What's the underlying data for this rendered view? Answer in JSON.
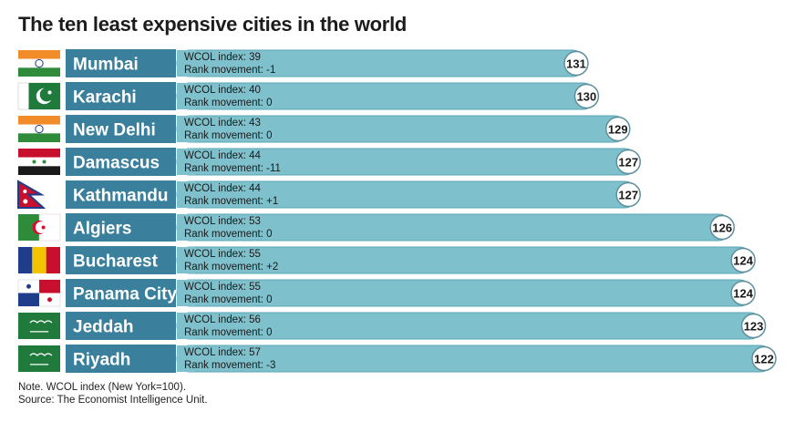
{
  "title": "The ten least expensive cities in the world",
  "note": "Note. WCOL index (New York=100).",
  "source": "Source: The Economist Intelligence Unit.",
  "colors": {
    "name_box": "#3a7f9c",
    "bar": "#7ec0cc",
    "bar_edge": "#5aa6b6",
    "rank_circle": "#ffffff"
  },
  "chart_data": {
    "type": "bar",
    "orientation": "horizontal",
    "categories": [
      "Mumbai",
      "Karachi",
      "New Delhi",
      "Damascus",
      "Kathmandu",
      "Algiers",
      "Bucharest",
      "Panama City",
      "Jeddah",
      "Riyadh"
    ],
    "flags": [
      "india-flag",
      "pakistan-flag",
      "india-flag",
      "syria-flag",
      "nepal-flag",
      "algeria-flag",
      "romania-flag",
      "panama-flag",
      "saudi-arabia-flag",
      "saudi-arabia-flag"
    ],
    "series": [
      {
        "name": "WCOL index",
        "values": [
          39,
          40,
          43,
          44,
          44,
          53,
          55,
          55,
          56,
          57
        ]
      }
    ],
    "rank": [
      131,
      130,
      129,
      127,
      127,
      126,
      124,
      124,
      123,
      122
    ],
    "index_labels": [
      "WCOL index: 39",
      "WCOL index: 40",
      "WCOL index: 43",
      "WCOL index: 44",
      "WCOL index: 44",
      "WCOL index: 53",
      "WCOL index: 55",
      "WCOL index: 55",
      "WCOL index: 56",
      "WCOL index: 57"
    ],
    "movement_labels": [
      "Rank movement: -1",
      "Rank movement: 0",
      "Rank movement: 0",
      "Rank movement: -11",
      "Rank movement: +1",
      "Rank movement: 0",
      "Rank movement: +2",
      "Rank movement: 0",
      "Rank movement: 0",
      "Rank movement: -3"
    ],
    "rank_labels": [
      "131",
      "130",
      "129",
      "127",
      "127",
      "126",
      "124",
      "124",
      "123",
      "122"
    ]
  }
}
